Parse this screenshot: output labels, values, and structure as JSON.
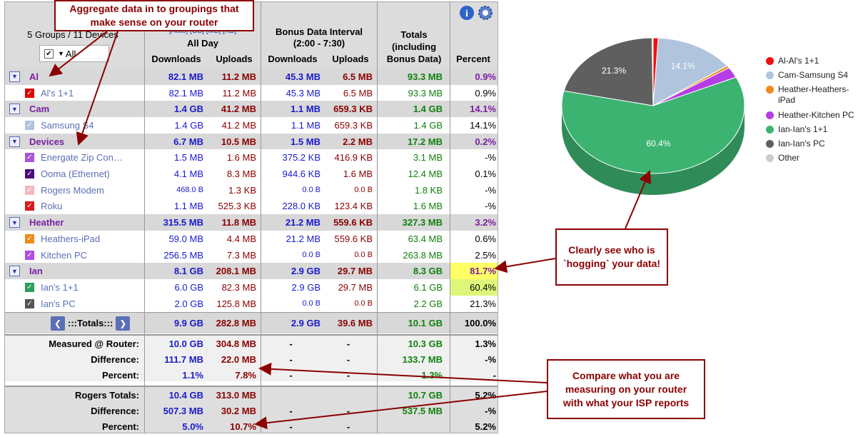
{
  "header": {
    "groups_summary": "5 Groups / 11 Devices",
    "filter_all": "All",
    "units": "[Auto] [GB] [MB] [KB]",
    "all_day": "All Day",
    "bonus_title": "Bonus Data Interval",
    "bonus_range": "(2:00 - 7:30)",
    "downloads": "Downloads",
    "uploads": "Uploads",
    "totals": "Totals (including Bonus Data)",
    "percent": "Percent"
  },
  "rows": [
    {
      "type": "group",
      "name": "Al",
      "dl": "82.1 MB",
      "ul": "11.2 MB",
      "bdl": "45.3 MB",
      "bul": "6.5 MB",
      "tot": "93.3 MB",
      "pct": "0.9%"
    },
    {
      "type": "device",
      "name": "Al's 1+1",
      "color": "#e00000",
      "dl": "82.1 MB",
      "ul": "11.2 MB",
      "bdl": "45.3 MB",
      "bul": "6.5 MB",
      "tot": "93.3 MB",
      "pct": "0.9%"
    },
    {
      "type": "group",
      "name": "Cam",
      "dl": "1.4 GB",
      "ul": "41.2 MB",
      "bdl": "1.1 MB",
      "bul": "659.3 KB",
      "tot": "1.4 GB",
      "pct": "14.1%"
    },
    {
      "type": "device",
      "name": "Samsung S4",
      "color": "#b0c4de",
      "dl": "1.4 GB",
      "ul": "41.2 MB",
      "bdl": "1.1 MB",
      "bul": "659.3 KB",
      "tot": "1.4 GB",
      "pct": "14.1%"
    },
    {
      "type": "group",
      "name": "Devices",
      "dl": "6.7 MB",
      "ul": "10.5 MB",
      "bdl": "1.5 MB",
      "bul": "2.2 MB",
      "tot": "17.2 MB",
      "pct": "0.2%"
    },
    {
      "type": "device",
      "name": "Energate Zip Con…",
      "color": "#a855d8",
      "dl": "1.5 MB",
      "ul": "1.6 MB",
      "bdl": "375.2 KB",
      "bul": "416.9 KB",
      "tot": "3.1 MB",
      "pct": "-%"
    },
    {
      "type": "device",
      "name": "Ooma (Ethernet)",
      "color": "#4b0a7a",
      "dl": "4.1 MB",
      "ul": "8.3 MB",
      "bdl": "944.6 KB",
      "bul": "1.6 MB",
      "tot": "12.4 MB",
      "pct": "0.1%"
    },
    {
      "type": "device",
      "name": "Rogers Modem",
      "color": "#f4b8c0",
      "dl": "468.0 B",
      "ul": "1.3 KB",
      "bdl": "0.0 B",
      "bul": "0.0 B",
      "tot": "1.8 KB",
      "pct": "-%"
    },
    {
      "type": "device",
      "name": "Roku",
      "color": "#d81b1b",
      "dl": "1.1 MB",
      "ul": "525.3 KB",
      "bdl": "228.0 KB",
      "bul": "123.4 KB",
      "tot": "1.6 MB",
      "pct": "-%"
    },
    {
      "type": "group",
      "name": "Heather",
      "dl": "315.5 MB",
      "ul": "11.8 MB",
      "bdl": "21.2 MB",
      "bul": "559.6 KB",
      "tot": "327.3 MB",
      "pct": "3.2%"
    },
    {
      "type": "device",
      "name": "Heathers-iPad",
      "color": "#f08a1c",
      "dl": "59.0 MB",
      "ul": "4.4 MB",
      "bdl": "21.2 MB",
      "bul": "559.6 KB",
      "tot": "63.4 MB",
      "pct": "0.6%"
    },
    {
      "type": "device",
      "name": "Kitchen PC",
      "color": "#b04ee0",
      "dl": "256.5 MB",
      "ul": "7.3 MB",
      "bdl": "0.0 B",
      "bul": "0.0 B",
      "tot": "263.8 MB",
      "pct": "2.5%"
    },
    {
      "type": "group",
      "name": "Ian",
      "dl": "8.1 GB",
      "ul": "208.1 MB",
      "bdl": "2.9 GB",
      "bul": "29.7 MB",
      "tot": "8.3 GB",
      "pct": "81.7%",
      "hl": "#ffff66"
    },
    {
      "type": "device",
      "name": "Ian's 1+1",
      "color": "#2e9e5b",
      "dl": "6.0 GB",
      "ul": "82.3 MB",
      "bdl": "2.9 GB",
      "bul": "29.7 MB",
      "tot": "6.1 GB",
      "pct": "60.4%",
      "hl": "#ddf77a"
    },
    {
      "type": "device",
      "name": "Ian's PC",
      "color": "#555555",
      "dl": "2.0 GB",
      "ul": "125.8 MB",
      "bdl": "0.0 B",
      "bul": "0.0 B",
      "tot": "2.2 GB",
      "pct": "21.3%"
    }
  ],
  "totals_row": {
    "label": ":::Totals:::",
    "dl": "9.9 GB",
    "ul": "282.8 MB",
    "bdl": "2.9 GB",
    "bul": "39.6 MB",
    "tot": "10.1 GB",
    "pct": "100.0%"
  },
  "router": [
    {
      "label": "Measured @ Router:",
      "dl": "10.0 GB",
      "ul": "304.8 MB",
      "bdl": "-",
      "bul": "-",
      "tot": "10.3 GB",
      "pct": "1.3%"
    },
    {
      "label": "Difference:",
      "dl": "111.7 MB",
      "ul": "22.0 MB",
      "bdl": "-",
      "bul": "-",
      "tot": "133.7 MB",
      "pct": "-%"
    },
    {
      "label": "Percent:",
      "dl": "1.1%",
      "ul": "7.8%",
      "bdl": "-",
      "bul": "-",
      "tot": "1.3%",
      "pct": "-"
    }
  ],
  "isp": [
    {
      "label": "Rogers Totals:",
      "dl": "10.4 GB",
      "ul": "313.0 MB",
      "bdl": "",
      "bul": "",
      "tot": "10.7 GB",
      "pct": "5.2%"
    },
    {
      "label": "Difference:",
      "dl": "507.3 MB",
      "ul": "30.2 MB",
      "bdl": "-",
      "bul": "-",
      "tot": "537.5 MB",
      "pct": "-%"
    },
    {
      "label": "Percent:",
      "dl": "5.0%",
      "ul": "10.7%",
      "bdl": "-",
      "bul": "-",
      "tot": "",
      "pct": "5.2%"
    }
  ],
  "annotations": {
    "aggregate": "Aggregate data in to groupings that make sense on your router",
    "hogging": "Clearly see who is `hogging` your data!",
    "compare": "Compare what you are measuring on your router with what your ISP reports"
  },
  "chart_data": {
    "type": "pie",
    "title": "",
    "labels": [
      "Al-Al's 1+1",
      "Cam-Samsung S4",
      "Heather-Heathers-iPad",
      "Heather-Kitchen PC",
      "Ian-Ian's 1+1",
      "Ian-Ian's PC",
      "Other"
    ],
    "values": [
      0.9,
      14.1,
      0.6,
      2.5,
      60.4,
      21.3,
      0.2
    ],
    "colors": [
      "#ee1111",
      "#b0c4de",
      "#f08a1c",
      "#b63ce8",
      "#3cb371",
      "#5f5f5f",
      "#cccccc"
    ],
    "slice_labels": {
      "Cam-Samsung S4": "14.1%",
      "Ian-Ian's 1+1": "60.4%",
      "Ian-Ian's PC": "21.3%"
    },
    "legend_position": "right"
  }
}
